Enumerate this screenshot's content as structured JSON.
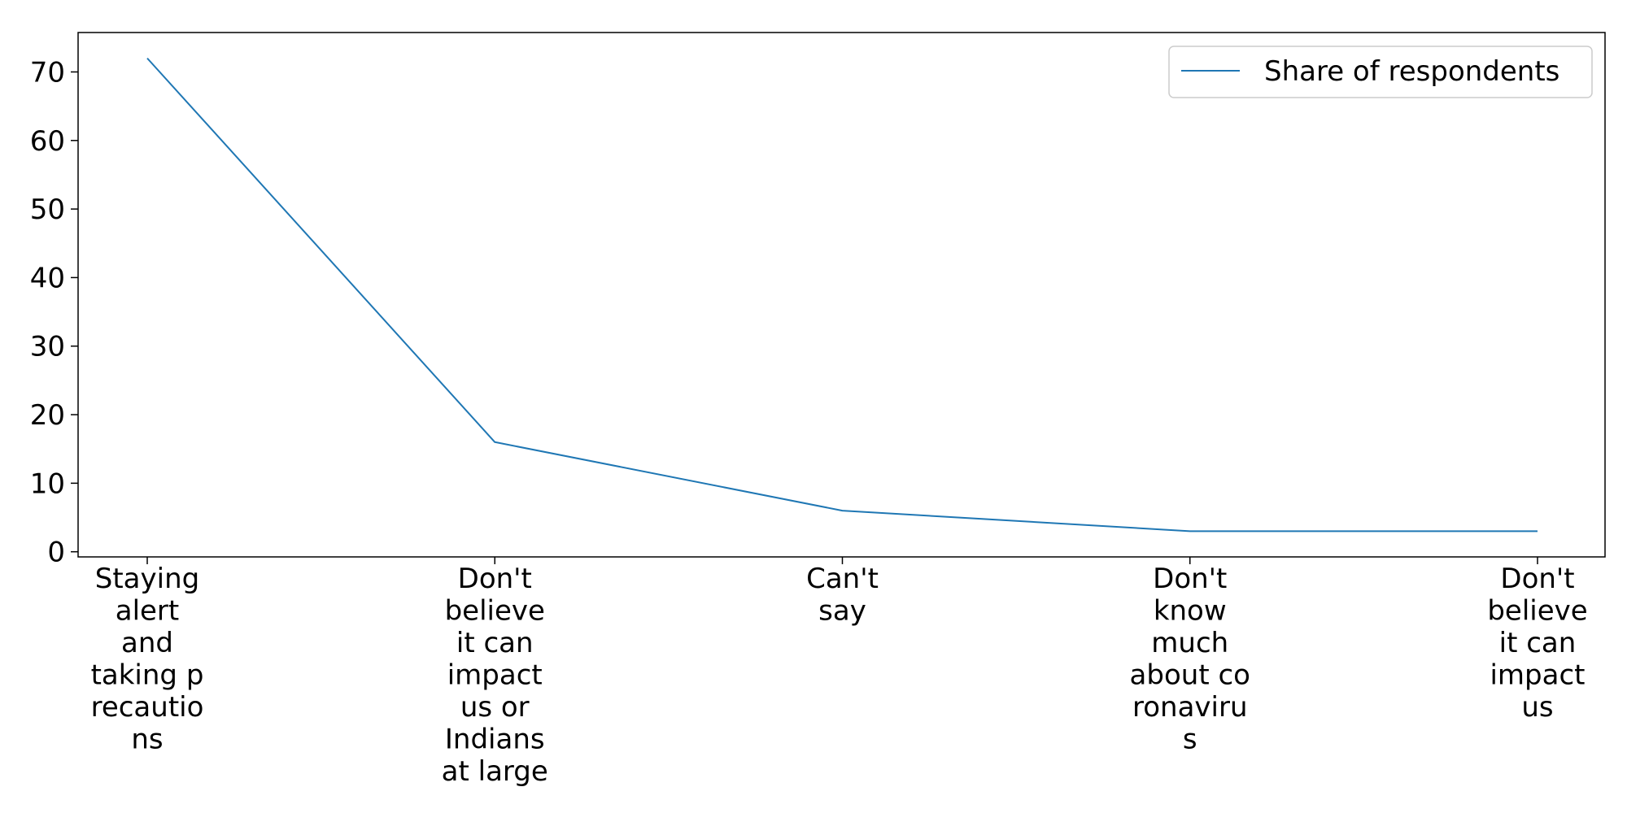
{
  "chart_data": {
    "type": "line",
    "categories": [
      "Staying alert and taking p recautio ns",
      "Don't believe it can impact us or Indians at large",
      "Can't say",
      "Don't know much about co ronaviru s",
      "Don't believe it can impact us"
    ],
    "category_label_lines": [
      [
        "Staying",
        "alert",
        "and",
        "taking p",
        "recautio",
        "ns"
      ],
      [
        "Don't",
        "believe",
        "it can",
        "impact",
        "us or",
        "Indians",
        "at large"
      ],
      [
        "Can't",
        "say"
      ],
      [
        "Don't",
        "know",
        "much",
        "about co",
        "ronaviru",
        "s"
      ],
      [
        "Don't",
        "believe",
        "it can",
        "impact",
        "us"
      ]
    ],
    "series": [
      {
        "name": "Share of respondents",
        "values": [
          72,
          16,
          6,
          3,
          3
        ],
        "color": "#1f77b4"
      }
    ],
    "ylim": [
      -0.75,
      75.75
    ],
    "yticks": [
      0,
      10,
      20,
      30,
      40,
      50,
      60,
      70
    ],
    "title": "",
    "xlabel": "",
    "ylabel": "",
    "grid": false,
    "legend_position": "upper right"
  }
}
